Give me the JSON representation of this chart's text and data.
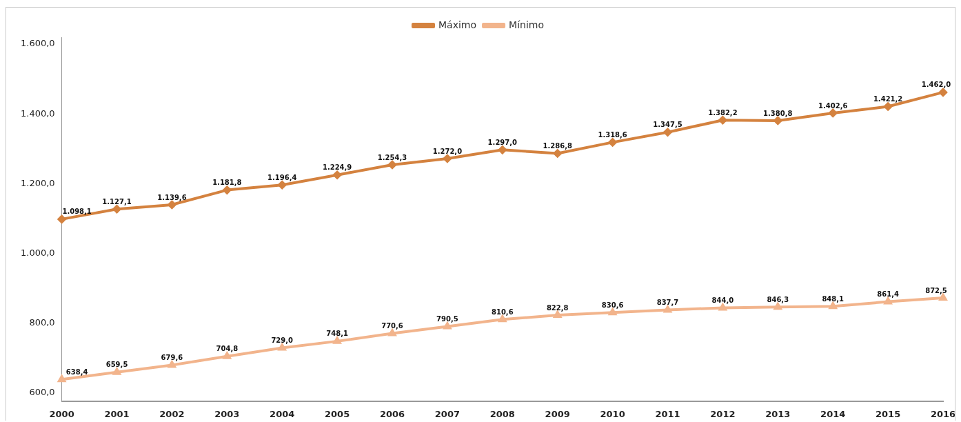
{
  "chart_data": {
    "type": "line",
    "categories": [
      "2000",
      "2001",
      "2002",
      "2003",
      "2004",
      "2005",
      "2006",
      "2007",
      "2008",
      "2009",
      "2010",
      "2011",
      "2012",
      "2013",
      "2014",
      "2015",
      "2016"
    ],
    "series": [
      {
        "name": "Máximo",
        "color": "#d4823f",
        "marker": "diamond",
        "values": [
          1098.1,
          1127.1,
          1139.6,
          1181.8,
          1196.4,
          1224.9,
          1254.3,
          1272.0,
          1297.0,
          1286.8,
          1318.6,
          1347.5,
          1382.2,
          1380.8,
          1402.6,
          1421.2,
          1462.0
        ],
        "value_labels": [
          "1.098,1",
          "1.127,1",
          "1.139,6",
          "1.181,8",
          "1.196,4",
          "1.224,9",
          "1.254,3",
          "1.272,0",
          "1.297,0",
          "1.286,8",
          "1.318,6",
          "1.347,5",
          "1.382,2",
          "1.380,8",
          "1.402,6",
          "1.421,2",
          "1.462,0"
        ]
      },
      {
        "name": "Mínimo",
        "color": "#f2b48c",
        "marker": "triangle",
        "values": [
          638.4,
          659.5,
          679.6,
          704.8,
          729.0,
          748.1,
          770.6,
          790.5,
          810.6,
          822.8,
          830.6,
          837.7,
          844.0,
          846.3,
          848.1,
          861.4,
          872.5
        ],
        "value_labels": [
          "638,4",
          "659,5",
          "679,6",
          "704,8",
          "729,0",
          "748,1",
          "770,6",
          "790,5",
          "810,6",
          "822,8",
          "830,6",
          "837,7",
          "844,0",
          "846,3",
          "848,1",
          "861,4",
          "872,5"
        ]
      }
    ],
    "ylim": [
      575,
      1620
    ],
    "yticks": [
      {
        "value": 600,
        "label": "600,0"
      },
      {
        "value": 800,
        "label": "800,0"
      },
      {
        "value": 1000,
        "label": "1.000,0"
      },
      {
        "value": 1200,
        "label": "1.200,0"
      },
      {
        "value": 1400,
        "label": "1.400,0"
      },
      {
        "value": 1600,
        "label": "1.600,0"
      }
    ],
    "grid": false,
    "legend": "top",
    "line_style": "solid"
  }
}
